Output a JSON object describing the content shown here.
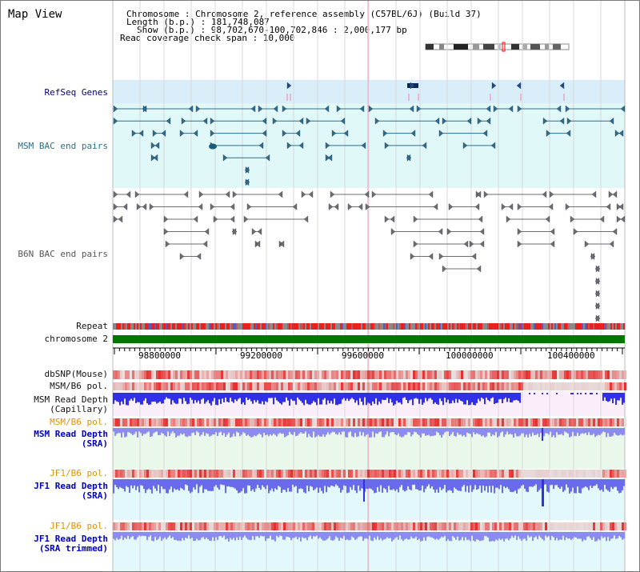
{
  "view": {
    "title": "Map View",
    "info": {
      "chromosome": "Chromosome      : Chromosome 2, reference assembly (C57BL/6J) (Build 37)",
      "length": "Length (b.p.) : 181,748,087",
      "show": "Show (b.p.) : 98,702,670-100,702,846 : 2,000,177 bp",
      "span": "Read coverage check span : 10,000"
    }
  },
  "tracks": {
    "refseq": "RefSeq Genes",
    "msm_bac": "MSM BAC end pairs",
    "b6n_bac": "B6N BAC end pairs",
    "repeat": "Repeat",
    "chromosome": "chromosome 2",
    "dbsnp": "dbSNP(Mouse)",
    "msm_b6_pol_1": "MSM/B6 pol.",
    "msm_read_depth_cap_1": "MSM Read Depth",
    "msm_read_depth_cap_2": "(Capillary)",
    "msm_b6_pol_2": "MSM/B6 pol.",
    "msm_read_depth_sra_1": "MSM Read Depth",
    "msm_read_depth_sra_2": "(SRA)",
    "jf1_b6_pol_1": "JF1/B6 pol.",
    "jf1_read_depth_sra_1": "JF1 Read Depth",
    "jf1_read_depth_sra_2": "(SRA)",
    "jf1_b6_pol_2": "JF1/B6 pol.",
    "jf1_read_depth_trim_1": "JF1 Read Depth",
    "jf1_read_depth_trim_2": "(SRA trimmed)"
  },
  "axis": {
    "ticks": [
      "98800000",
      "99200000",
      "99600000",
      "100000000",
      "100400000"
    ]
  },
  "colors": {
    "refseq_bg": "#daeefa",
    "msm_bg": "#e1f8f8",
    "teal_feature": "#2d6e8c",
    "gray_feature": "#6e6e6e",
    "chromosome_bar": "#007700",
    "snp_red": "#e83030",
    "depth_blue": "#3030e8",
    "depth_light_blue": "#8c8cf0",
    "pink_bg": "#fbeefb",
    "green_bg": "#eaf8ec",
    "cyan_bg": "#e2f8fb"
  }
}
